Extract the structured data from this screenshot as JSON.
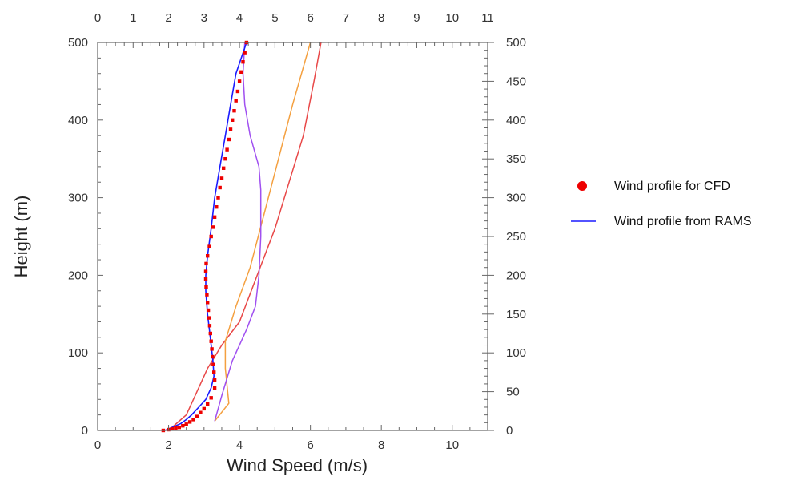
{
  "chart_data": {
    "type": "line",
    "xlabel": "Wind Speed (m/s)",
    "ylabel": "Height (m)",
    "xlim": [
      0,
      11
    ],
    "ylim": [
      0,
      500
    ],
    "bottom_x_ticks": [
      "0",
      "2",
      "4",
      "6",
      "8",
      "10"
    ],
    "top_x_ticks": [
      "0",
      "1",
      "2",
      "3",
      "4",
      "5",
      "6",
      "7",
      "8",
      "9",
      "10",
      "11"
    ],
    "left_y_ticks": [
      "0",
      "100",
      "200",
      "300",
      "400",
      "500"
    ],
    "right_y_ticks": [
      "0",
      "50",
      "100",
      "150",
      "200",
      "250",
      "300",
      "350",
      "400",
      "450",
      "500"
    ],
    "grid": false,
    "legend": [
      {
        "label": "Wind profile for CFD",
        "marker": "circle",
        "color": "#ee0000"
      },
      {
        "label": "Wind profile from RAMS",
        "marker": "line",
        "color": "#1a1aff"
      }
    ],
    "series": [
      {
        "name": "Wind profile from RAMS",
        "color": "#1a1aff",
        "x": [
          1.9,
          2.05,
          2.2,
          2.35,
          2.5,
          2.65,
          2.85,
          3.05,
          3.2,
          3.28,
          3.25,
          3.2,
          3.15,
          3.1,
          3.05,
          3.05,
          3.1,
          3.2,
          3.3,
          3.45,
          3.6,
          3.75,
          3.9,
          4.05,
          4.2
        ],
        "y": [
          0,
          3,
          6,
          9,
          14,
          20,
          30,
          40,
          55,
          70,
          90,
          110,
          130,
          150,
          180,
          200,
          225,
          260,
          300,
          340,
          380,
          420,
          460,
          480,
          500
        ]
      },
      {
        "name": "Wind profile for CFD",
        "color": "#ee0000",
        "x": [
          1.85,
          2.0,
          2.1,
          2.2,
          2.3,
          2.4,
          2.5,
          2.6,
          2.7,
          2.8,
          2.9,
          3.0,
          3.1,
          3.2,
          3.3,
          3.3,
          3.28,
          3.26,
          3.24,
          3.22,
          3.2,
          3.18,
          3.16,
          3.14,
          3.12,
          3.1,
          3.08,
          3.06,
          3.05,
          3.05,
          3.06,
          3.1,
          3.15,
          3.2,
          3.25,
          3.3,
          3.35,
          3.4,
          3.45,
          3.5,
          3.55,
          3.6,
          3.65,
          3.7,
          3.75,
          3.8,
          3.85,
          3.9,
          3.95,
          4.0,
          4.05,
          4.1,
          4.15,
          4.2
        ],
        "y": [
          0,
          1,
          2,
          3,
          4,
          6,
          8,
          11,
          14,
          18,
          23,
          28,
          34,
          42,
          55,
          65,
          75,
          85,
          95,
          105,
          115,
          125,
          135,
          145,
          155,
          165,
          175,
          185,
          195,
          205,
          215,
          225,
          237,
          250,
          262,
          275,
          288,
          300,
          313,
          325,
          338,
          350,
          362,
          375,
          388,
          400,
          412,
          425,
          437,
          450,
          462,
          475,
          487,
          500
        ]
      },
      {
        "name": "",
        "color": "#e84848",
        "x": [
          2.0,
          2.5,
          2.8,
          3.1,
          3.5,
          4.0,
          4.5,
          5.0,
          5.4,
          5.8,
          6.1,
          6.3
        ],
        "y": [
          0,
          20,
          50,
          80,
          110,
          140,
          200,
          260,
          320,
          380,
          450,
          500
        ]
      },
      {
        "name": "",
        "color": "#f4a040",
        "x": [
          3.3,
          3.7,
          3.6,
          3.6,
          3.9,
          4.3,
          4.7,
          5.1,
          5.5,
          6.0
        ],
        "y": [
          12,
          35,
          80,
          115,
          160,
          210,
          280,
          350,
          420,
          500
        ]
      },
      {
        "name": "",
        "color": "#a050f0",
        "x": [
          3.3,
          3.5,
          3.8,
          4.2,
          4.45,
          4.55,
          4.6,
          4.6,
          4.55,
          4.3,
          4.15,
          4.1,
          4.15
        ],
        "y": [
          12,
          45,
          90,
          130,
          160,
          200,
          250,
          310,
          340,
          380,
          420,
          460,
          500
        ]
      }
    ]
  }
}
